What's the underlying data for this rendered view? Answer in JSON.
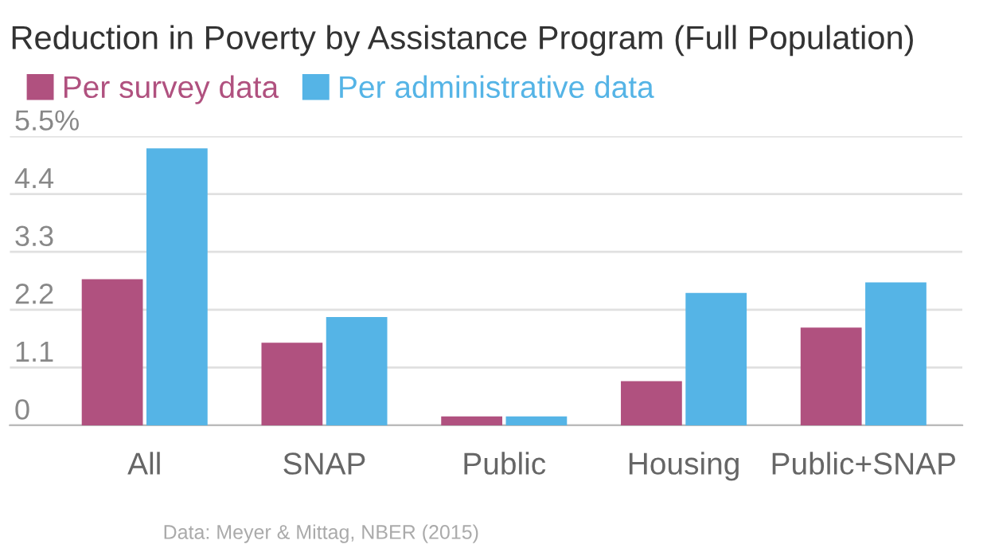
{
  "chart_data": {
    "type": "bar",
    "title": "Reduction in Poverty by Assistance Program (Full Population)",
    "categories": [
      "All",
      "SNAP",
      "Public",
      "Housing",
      "Public+SNAP"
    ],
    "series": [
      {
        "name": "Per survey data",
        "color": "#b0517f",
        "values": [
          2.78,
          1.57,
          0.17,
          0.84,
          1.86
        ]
      },
      {
        "name": "Per administrative data",
        "color": "#55b4e6",
        "values": [
          5.27,
          2.06,
          0.17,
          2.52,
          2.72
        ]
      }
    ],
    "ylim": [
      0,
      5.5
    ],
    "yticks": [
      0,
      1.1,
      2.2,
      3.3,
      4.4,
      {
        "value": 5.5,
        "label": "5.5%"
      }
    ],
    "grid": "y",
    "legend": "top left",
    "annotations": [
      "Data: Meyer & Mittag, NBER (2015)"
    ]
  }
}
